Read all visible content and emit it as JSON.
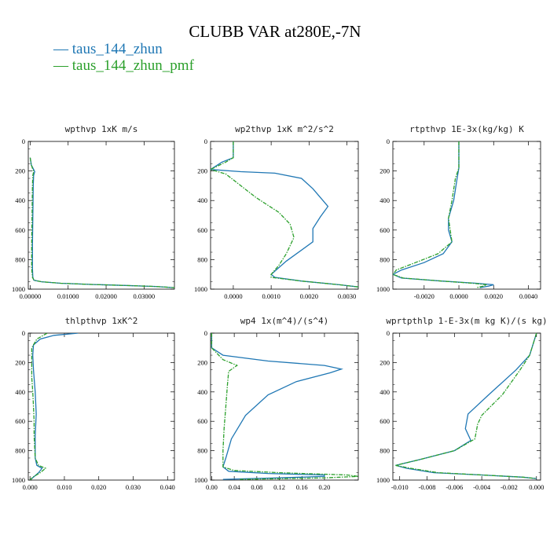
{
  "title": "CLUBB VAR at280E,-7N",
  "colors": {
    "series1": "#1f77b4",
    "series2": "#2ca02c"
  },
  "legend": [
    {
      "marker": "—",
      "label": "taus_144_zhun",
      "color": "#1f77b4"
    },
    {
      "marker": "—",
      "label": "taus_144_zhun_pmf",
      "color": "#2ca02c"
    }
  ],
  "chart_data": [
    {
      "type": "line",
      "title": "wpthvp  1xK m/s",
      "xlim": [
        -0.0005,
        0.038
      ],
      "ylim": [
        1000,
        0
      ],
      "xticks": [
        0.0,
        0.01,
        0.02,
        0.03
      ],
      "xticklabels": [
        "0.00000",
        "0.01000",
        "0.02000",
        "0.03000"
      ],
      "yticks": [
        0,
        200,
        400,
        600,
        800,
        1000
      ],
      "series": [
        {
          "name": "taus_144_zhun",
          "x": [
            0.0,
            0.0003,
            0.0012,
            0.0009,
            0.0008,
            0.0007,
            0.0006,
            0.0006,
            0.0007,
            0.001,
            0.003,
            0.008,
            0.016,
            0.025,
            0.033,
            0.038
          ],
          "y": [
            110,
            160,
            205,
            230,
            300,
            500,
            700,
            860,
            920,
            940,
            950,
            960,
            968,
            975,
            982,
            990
          ]
        },
        {
          "name": "taus_144_zhun_pmf",
          "x": [
            0.0,
            0.0003,
            0.0009,
            0.0007,
            0.0006,
            0.0005,
            0.0004,
            0.0004,
            0.0006,
            0.001,
            0.003,
            0.008,
            0.016,
            0.025,
            0.033,
            0.038
          ],
          "y": [
            110,
            160,
            205,
            230,
            300,
            500,
            700,
            860,
            920,
            940,
            950,
            960,
            968,
            975,
            982,
            990
          ]
        }
      ]
    },
    {
      "type": "line",
      "title": "wp2thvp  1xK m^2/s^2",
      "xlim": [
        -0.0006,
        0.0033
      ],
      "ylim": [
        1000,
        0
      ],
      "xticks": [
        0.0,
        0.001,
        0.002,
        0.003
      ],
      "xticklabels": [
        "0.0000",
        "0.0010",
        "0.0020",
        "0.0030"
      ],
      "yticks": [
        0,
        200,
        400,
        600,
        800,
        1000
      ],
      "series": [
        {
          "name": "taus_144_zhun",
          "x": [
            0.0,
            0.0,
            -0.0003,
            -0.0006,
            0.0002,
            0.0011,
            0.0018,
            0.0021,
            0.0023,
            0.0025,
            0.0023,
            0.0021,
            0.0021,
            0.0014,
            0.001,
            0.0011,
            0.0018,
            0.0028,
            0.0033
          ],
          "y": [
            0,
            110,
            140,
            190,
            205,
            215,
            250,
            320,
            380,
            440,
            510,
            590,
            680,
            810,
            900,
            920,
            945,
            970,
            985
          ]
        },
        {
          "name": "taus_144_zhun_pmf",
          "x": [
            0.0,
            0.0,
            -0.0002,
            -0.0006,
            -0.0002,
            0.0001,
            0.0006,
            0.0012,
            0.0015,
            0.0016,
            0.0014,
            0.0012,
            0.001,
            0.001,
            0.0018,
            0.0028,
            0.0033
          ],
          "y": [
            0,
            110,
            140,
            190,
            220,
            280,
            380,
            480,
            560,
            650,
            760,
            840,
            900,
            920,
            945,
            970,
            985
          ]
        }
      ]
    },
    {
      "type": "line",
      "title": "rtpthvp  1E-3x(kg/kg) K",
      "xlim": [
        -0.0038,
        0.0047
      ],
      "ylim": [
        1000,
        0
      ],
      "xticks": [
        -0.002,
        0.0,
        0.002,
        0.004
      ],
      "xticklabels": [
        "-0.0020",
        "0.0000",
        "0.0020",
        "0.0040"
      ],
      "yticks": [
        0,
        200,
        400,
        600,
        800,
        1000
      ],
      "series": [
        {
          "name": "taus_144_zhun",
          "x": [
            0.0,
            0.0,
            -0.0001,
            -0.0003,
            -0.0006,
            -0.0006,
            -0.0004,
            -0.0009,
            -0.002,
            -0.0033,
            -0.0038,
            -0.0033,
            -0.001,
            0.001,
            0.002,
            0.0017,
            0.0012
          ],
          "y": [
            0,
            180,
            250,
            400,
            520,
            600,
            680,
            760,
            820,
            870,
            900,
            925,
            945,
            960,
            970,
            980,
            990
          ]
        },
        {
          "name": "taus_144_zhun_pmf",
          "x": [
            0.0,
            0.0,
            -0.0002,
            -0.0004,
            -0.0006,
            -0.0005,
            -0.0004,
            -0.0012,
            -0.0025,
            -0.0036,
            -0.0038,
            -0.0032,
            -0.001,
            0.0008,
            0.0016,
            0.0014,
            0.001
          ],
          "y": [
            0,
            180,
            250,
            400,
            520,
            600,
            680,
            760,
            820,
            870,
            900,
            925,
            945,
            960,
            970,
            980,
            990
          ]
        }
      ]
    },
    {
      "type": "line",
      "title": "thlpthvp  1xK^2",
      "xlim": [
        -0.0005,
        0.042
      ],
      "ylim": [
        1000,
        0
      ],
      "xticks": [
        0.0,
        0.01,
        0.02,
        0.03,
        0.04
      ],
      "xticklabels": [
        "0.000",
        "0.010",
        "0.020",
        "0.030",
        "0.040"
      ],
      "yticks": [
        0,
        200,
        400,
        600,
        800,
        1000
      ],
      "series": [
        {
          "name": "taus_144_zhun",
          "x": [
            0.014,
            0.007,
            0.003,
            0.001,
            0.0008,
            0.001,
            0.0015,
            0.0018,
            0.0015,
            0.0015,
            0.002,
            0.0035,
            0.0025,
            0.001,
            0.0
          ],
          "y": [
            0,
            15,
            40,
            80,
            150,
            250,
            400,
            550,
            700,
            850,
            900,
            920,
            950,
            980,
            1000
          ]
        },
        {
          "name": "taus_144_zhun_pmf",
          "x": [
            0.005,
            0.002,
            0.0005,
            0.0005,
            0.0005,
            0.0008,
            0.001,
            0.0012,
            0.0012,
            0.0015,
            0.0025,
            0.0045,
            0.003,
            0.0008,
            0.0
          ],
          "y": [
            0,
            40,
            100,
            200,
            300,
            400,
            500,
            600,
            700,
            850,
            900,
            920,
            950,
            980,
            1000
          ]
        }
      ]
    },
    {
      "type": "line",
      "title": "wp4  1x(m^4)/(s^4)",
      "xlim": [
        -0.002,
        0.26
      ],
      "ylim": [
        1000,
        0
      ],
      "xticks": [
        0.0,
        0.04,
        0.08,
        0.12,
        0.16,
        0.2
      ],
      "xticklabels": [
        "0.00",
        "0.04",
        "0.08",
        "0.12",
        "0.16",
        "0.20"
      ],
      "yticks": [
        0,
        200,
        400,
        600,
        800,
        1000
      ],
      "series": [
        {
          "name": "taus_144_zhun",
          "x": [
            0.0,
            0.0,
            0.02,
            0.1,
            0.2,
            0.23,
            0.21,
            0.15,
            0.1,
            0.06,
            0.035,
            0.025,
            0.02,
            0.03,
            0.1,
            0.2,
            0.2,
            0.12,
            0.02
          ],
          "y": [
            0,
            100,
            150,
            190,
            220,
            245,
            270,
            330,
            420,
            560,
            720,
            850,
            910,
            940,
            955,
            965,
            975,
            985,
            995
          ]
        },
        {
          "name": "taus_144_zhun_pmf",
          "x": [
            0.0,
            0.0,
            0.02,
            0.045,
            0.03,
            0.028,
            0.025,
            0.022,
            0.02,
            0.02,
            0.04,
            0.12,
            0.24,
            0.26,
            0.2,
            0.05
          ],
          "y": [
            0,
            100,
            180,
            220,
            260,
            350,
            500,
            650,
            800,
            910,
            935,
            950,
            965,
            975,
            985,
            995
          ]
        }
      ]
    },
    {
      "type": "line",
      "title": "wprtpthlp  1-E-3x(m kg K)/(s kg)",
      "xlim": [
        -0.0105,
        0.0003
      ],
      "ylim": [
        1000,
        0
      ],
      "xticks": [
        -0.01,
        -0.008,
        -0.006,
        -0.004,
        -0.002,
        0.0
      ],
      "xticklabels": [
        "-0.010",
        "-0.008",
        "-0.006",
        "-0.004",
        "-0.002",
        "0.000"
      ],
      "yticks": [
        0,
        200,
        400,
        600,
        800,
        1000
      ],
      "series": [
        {
          "name": "taus_144_zhun",
          "x": [
            0.0,
            -0.0005,
            -0.0015,
            -0.0035,
            -0.005,
            -0.0052,
            -0.0048,
            -0.006,
            -0.0085,
            -0.0103,
            -0.0095,
            -0.0075,
            -0.004,
            -0.001,
            0.0
          ],
          "y": [
            0,
            150,
            250,
            420,
            550,
            650,
            730,
            800,
            860,
            900,
            920,
            950,
            965,
            980,
            990
          ]
        },
        {
          "name": "taus_144_zhun_pmf",
          "x": [
            0.0,
            -0.0005,
            -0.0012,
            -0.0025,
            -0.004,
            -0.0043,
            -0.0045,
            -0.006,
            -0.0085,
            -0.0103,
            -0.0092,
            -0.0072,
            -0.004,
            -0.001,
            0.0
          ],
          "y": [
            0,
            150,
            250,
            420,
            560,
            620,
            720,
            800,
            860,
            900,
            920,
            950,
            965,
            980,
            990
          ]
        }
      ]
    }
  ]
}
